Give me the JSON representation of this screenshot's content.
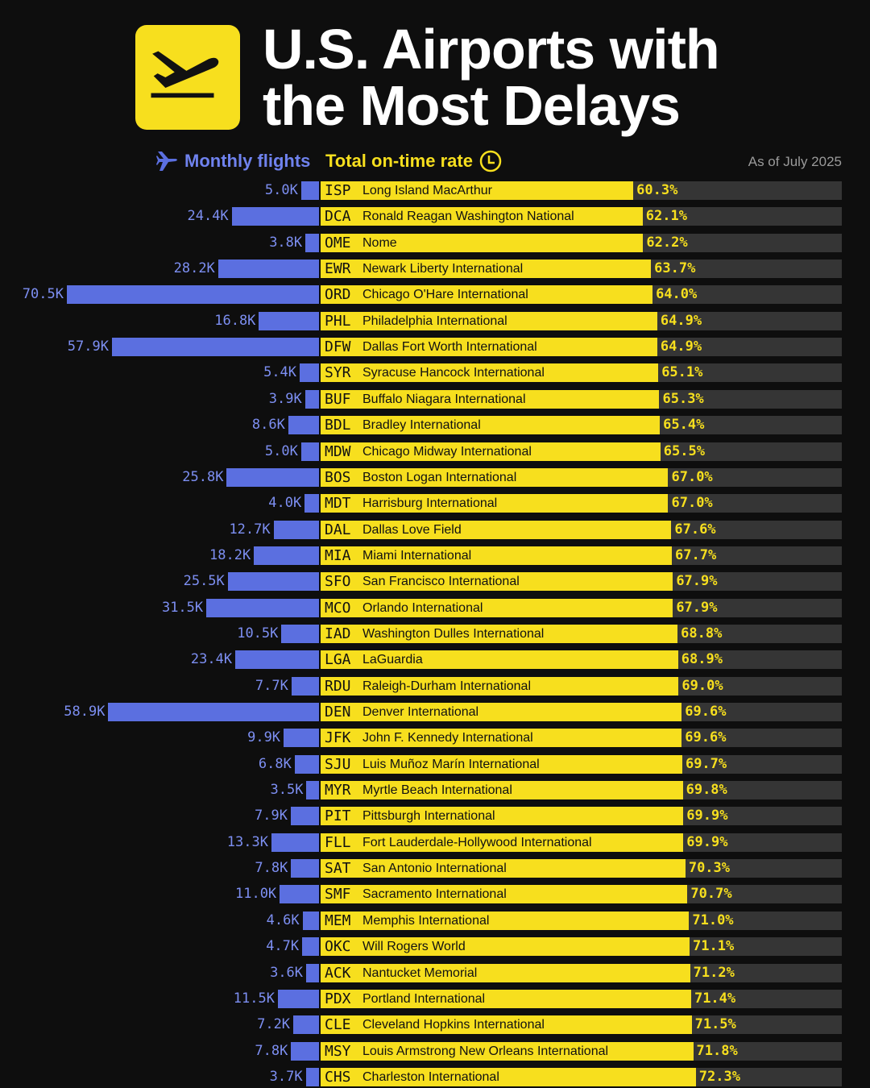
{
  "title_line1": "U.S. Airports with",
  "title_line2": "the Most Delays",
  "header": {
    "flights_label": "Monthly flights",
    "rate_label": "Total on-time rate",
    "as_of": "As of July 2025"
  },
  "colors": {
    "background": "#0e0e0e",
    "yellow": "#f7df1e",
    "blue": "#5b6fe0",
    "track": "#353535"
  },
  "chart_data": {
    "type": "bar",
    "series": [
      {
        "name": "Monthly flights",
        "unit": "K"
      },
      {
        "name": "Total on-time rate",
        "unit": "%"
      }
    ],
    "rows": [
      {
        "code": "ISP",
        "name": "Long Island MacArthur",
        "flights": "5.0K",
        "flights_k": 5.0,
        "rate": "60.3%",
        "rate_pct": 60.3
      },
      {
        "code": "DCA",
        "name": "Ronald Reagan Washington National",
        "flights": "24.4K",
        "flights_k": 24.4,
        "rate": "62.1%",
        "rate_pct": 62.1
      },
      {
        "code": "OME",
        "name": "Nome",
        "flights": "3.8K",
        "flights_k": 3.8,
        "rate": "62.2%",
        "rate_pct": 62.2
      },
      {
        "code": "EWR",
        "name": "Newark Liberty International",
        "flights": "28.2K",
        "flights_k": 28.2,
        "rate": "63.7%",
        "rate_pct": 63.7
      },
      {
        "code": "ORD",
        "name": "Chicago O'Hare International",
        "flights": "70.5K",
        "flights_k": 70.5,
        "rate": "64.0%",
        "rate_pct": 64.0
      },
      {
        "code": "PHL",
        "name": "Philadelphia International",
        "flights": "16.8K",
        "flights_k": 16.8,
        "rate": "64.9%",
        "rate_pct": 64.9
      },
      {
        "code": "DFW",
        "name": "Dallas Fort Worth International",
        "flights": "57.9K",
        "flights_k": 57.9,
        "rate": "64.9%",
        "rate_pct": 64.9
      },
      {
        "code": "SYR",
        "name": "Syracuse Hancock International",
        "flights": "5.4K",
        "flights_k": 5.4,
        "rate": "65.1%",
        "rate_pct": 65.1
      },
      {
        "code": "BUF",
        "name": "Buffalo Niagara International",
        "flights": "3.9K",
        "flights_k": 3.9,
        "rate": "65.3%",
        "rate_pct": 65.3
      },
      {
        "code": "BDL",
        "name": "Bradley International",
        "flights": "8.6K",
        "flights_k": 8.6,
        "rate": "65.4%",
        "rate_pct": 65.4
      },
      {
        "code": "MDW",
        "name": "Chicago Midway International",
        "flights": "5.0K",
        "flights_k": 5.0,
        "rate": "65.5%",
        "rate_pct": 65.5
      },
      {
        "code": "BOS",
        "name": "Boston Logan International",
        "flights": "25.8K",
        "flights_k": 25.8,
        "rate": "67.0%",
        "rate_pct": 67.0
      },
      {
        "code": "MDT",
        "name": "Harrisburg International",
        "flights": "4.0K",
        "flights_k": 4.0,
        "rate": "67.0%",
        "rate_pct": 67.0
      },
      {
        "code": "DAL",
        "name": "Dallas Love Field",
        "flights": "12.7K",
        "flights_k": 12.7,
        "rate": "67.6%",
        "rate_pct": 67.6
      },
      {
        "code": "MIA",
        "name": "Miami International",
        "flights": "18.2K",
        "flights_k": 18.2,
        "rate": "67.7%",
        "rate_pct": 67.7
      },
      {
        "code": "SFO",
        "name": "San Francisco International",
        "flights": "25.5K",
        "flights_k": 25.5,
        "rate": "67.9%",
        "rate_pct": 67.9
      },
      {
        "code": "MCO",
        "name": "Orlando International",
        "flights": "31.5K",
        "flights_k": 31.5,
        "rate": "67.9%",
        "rate_pct": 67.9
      },
      {
        "code": "IAD",
        "name": "Washington Dulles International",
        "flights": "10.5K",
        "flights_k": 10.5,
        "rate": "68.8%",
        "rate_pct": 68.8
      },
      {
        "code": "LGA",
        "name": "LaGuardia",
        "flights": "23.4K",
        "flights_k": 23.4,
        "rate": "68.9%",
        "rate_pct": 68.9
      },
      {
        "code": "RDU",
        "name": "Raleigh-Durham International",
        "flights": "7.7K",
        "flights_k": 7.7,
        "rate": "69.0%",
        "rate_pct": 69.0
      },
      {
        "code": "DEN",
        "name": "Denver International",
        "flights": "58.9K",
        "flights_k": 58.9,
        "rate": "69.6%",
        "rate_pct": 69.6
      },
      {
        "code": "JFK",
        "name": "John F. Kennedy International",
        "flights": "9.9K",
        "flights_k": 9.9,
        "rate": "69.6%",
        "rate_pct": 69.6
      },
      {
        "code": "SJU",
        "name": "Luis Muñoz Marín International",
        "flights": "6.8K",
        "flights_k": 6.8,
        "rate": "69.7%",
        "rate_pct": 69.7
      },
      {
        "code": "MYR",
        "name": "Myrtle Beach International",
        "flights": "3.5K",
        "flights_k": 3.5,
        "rate": "69.8%",
        "rate_pct": 69.8
      },
      {
        "code": "PIT",
        "name": "Pittsburgh International",
        "flights": "7.9K",
        "flights_k": 7.9,
        "rate": "69.9%",
        "rate_pct": 69.9
      },
      {
        "code": "FLL",
        "name": "Fort Lauderdale-Hollywood International",
        "flights": "13.3K",
        "flights_k": 13.3,
        "rate": "69.9%",
        "rate_pct": 69.9
      },
      {
        "code": "SAT",
        "name": "San Antonio International",
        "flights": "7.8K",
        "flights_k": 7.8,
        "rate": "70.3%",
        "rate_pct": 70.3
      },
      {
        "code": "SMF",
        "name": "Sacramento International",
        "flights": "11.0K",
        "flights_k": 11.0,
        "rate": "70.7%",
        "rate_pct": 70.7
      },
      {
        "code": "MEM",
        "name": "Memphis International",
        "flights": "4.6K",
        "flights_k": 4.6,
        "rate": "71.0%",
        "rate_pct": 71.0
      },
      {
        "code": "OKC",
        "name": "Will Rogers World",
        "flights": "4.7K",
        "flights_k": 4.7,
        "rate": "71.1%",
        "rate_pct": 71.1
      },
      {
        "code": "ACK",
        "name": "Nantucket Memorial",
        "flights": "3.6K",
        "flights_k": 3.6,
        "rate": "71.2%",
        "rate_pct": 71.2
      },
      {
        "code": "PDX",
        "name": "Portland International",
        "flights": "11.5K",
        "flights_k": 11.5,
        "rate": "71.4%",
        "rate_pct": 71.4
      },
      {
        "code": "CLE",
        "name": "Cleveland Hopkins International",
        "flights": "7.2K",
        "flights_k": 7.2,
        "rate": "71.5%",
        "rate_pct": 71.5
      },
      {
        "code": "MSY",
        "name": "Louis Armstrong New Orleans International",
        "flights": "7.8K",
        "flights_k": 7.8,
        "rate": "71.8%",
        "rate_pct": 71.8
      },
      {
        "code": "CHS",
        "name": "Charleston International",
        "flights": "3.7K",
        "flights_k": 3.7,
        "rate": "72.3%",
        "rate_pct": 72.3
      }
    ]
  }
}
